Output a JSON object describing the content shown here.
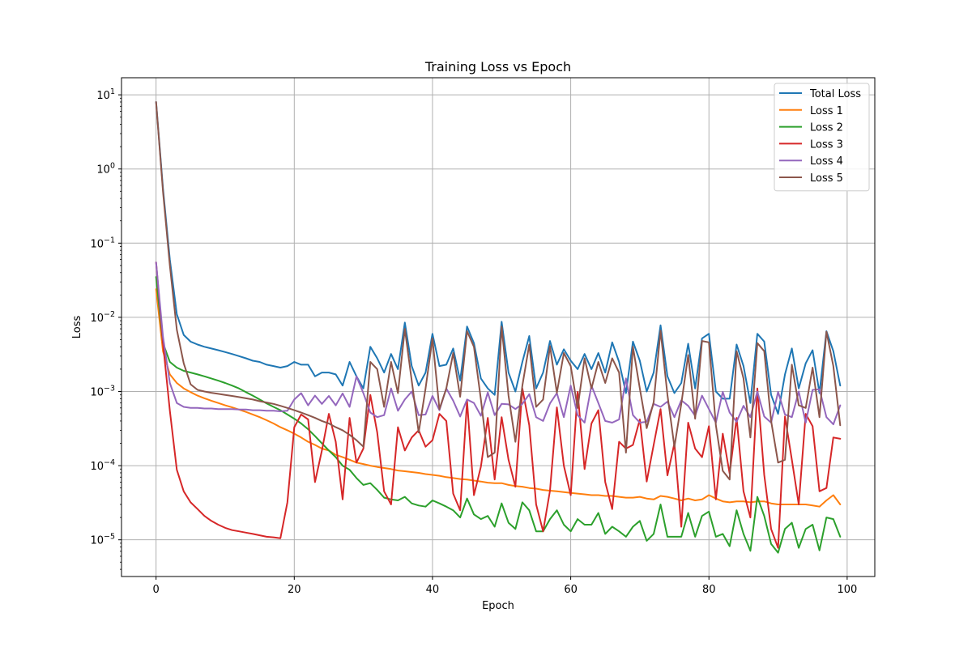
{
  "chart_data": {
    "type": "line",
    "title": "Training Loss vs Epoch",
    "xlabel": "Epoch",
    "ylabel": "Loss",
    "xlim": [
      -5,
      104
    ],
    "ylim": [
      3.2e-06,
      17
    ],
    "yscale": "log",
    "grid": true,
    "legend_position": "top-right",
    "x_ticks": [
      0,
      20,
      40,
      60,
      80,
      100
    ],
    "x_tick_labels": [
      "0",
      "20",
      "40",
      "60",
      "80",
      "100"
    ],
    "y_ticks": [
      1e-05,
      0.0001,
      0.001,
      0.01,
      0.1,
      1,
      10
    ],
    "y_tick_labels": [
      {
        "base": "10",
        "exp": "−5"
      },
      {
        "base": "10",
        "exp": "−4"
      },
      {
        "base": "10",
        "exp": "−3"
      },
      {
        "base": "10",
        "exp": "−2"
      },
      {
        "base": "10",
        "exp": "−1"
      },
      {
        "base": "10",
        "exp": "0"
      },
      {
        "base": "10",
        "exp": "1"
      }
    ],
    "series": [
      {
        "name": "Total Loss",
        "color": "#1f77b4",
        "values": [
          8.0,
          0.55,
          0.06,
          0.011,
          0.0058,
          0.0047,
          0.0043,
          0.004,
          0.0038,
          0.0036,
          0.0034,
          0.0032,
          0.003,
          0.0028,
          0.0026,
          0.0025,
          0.0023,
          0.0022,
          0.0021,
          0.0022,
          0.0025,
          0.0023,
          0.0023,
          0.0016,
          0.0018,
          0.0018,
          0.0017,
          0.0012,
          0.0025,
          0.0016,
          0.0011,
          0.004,
          0.0028,
          0.0018,
          0.0032,
          0.002,
          0.0085,
          0.0022,
          0.0012,
          0.0018,
          0.006,
          0.0022,
          0.0023,
          0.0038,
          0.0014,
          0.0075,
          0.0045,
          0.0015,
          0.0011,
          0.0009,
          0.0087,
          0.0018,
          0.001,
          0.0025,
          0.0056,
          0.0011,
          0.0018,
          0.0048,
          0.0023,
          0.0037,
          0.0026,
          0.002,
          0.0032,
          0.002,
          0.0033,
          0.0018,
          0.0046,
          0.0025,
          0.00095,
          0.0047,
          0.0026,
          0.001,
          0.0018,
          0.0078,
          0.0016,
          0.00095,
          0.0013,
          0.0044,
          0.0011,
          0.0052,
          0.006,
          0.001,
          0.0008,
          0.0008,
          0.0043,
          0.0022,
          0.0007,
          0.006,
          0.0047,
          0.0009,
          0.0005,
          0.0017,
          0.0038,
          0.0011,
          0.0024,
          0.0036,
          0.00095,
          0.0065,
          0.0035,
          0.0012
        ]
      },
      {
        "name": "Loss 1",
        "color": "#ff7f0e",
        "values": [
          0.024,
          0.0035,
          0.0017,
          0.0013,
          0.0011,
          0.00098,
          0.00088,
          0.00081,
          0.00075,
          0.0007,
          0.00065,
          0.00061,
          0.00057,
          0.00053,
          0.00049,
          0.00045,
          0.00041,
          0.00037,
          0.00033,
          0.0003,
          0.00027,
          0.00024,
          0.00021,
          0.00019,
          0.00017,
          0.00016,
          0.00014,
          0.00013,
          0.00012,
          0.00011,
          0.000105,
          0.0001,
          9.6e-05,
          9.3e-05,
          9e-05,
          8.6e-05,
          8.4e-05,
          8.2e-05,
          8e-05,
          7.7e-05,
          7.5e-05,
          7.3e-05,
          7e-05,
          6.8e-05,
          6.6e-05,
          6.5e-05,
          6.3e-05,
          6.1e-05,
          5.9e-05,
          5.8e-05,
          5.8e-05,
          5.5e-05,
          5.3e-05,
          5.2e-05,
          5e-05,
          4.9e-05,
          4.7e-05,
          4.6e-05,
          4.5e-05,
          4.4e-05,
          4.3e-05,
          4.2e-05,
          4.1e-05,
          4e-05,
          4e-05,
          3.9e-05,
          3.9e-05,
          3.8e-05,
          3.7e-05,
          3.7e-05,
          3.8e-05,
          3.6e-05,
          3.5e-05,
          3.9e-05,
          3.8e-05,
          3.6e-05,
          3.4e-05,
          3.6e-05,
          3.4e-05,
          3.5e-05,
          4e-05,
          3.6e-05,
          3.3e-05,
          3.2e-05,
          3.3e-05,
          3.3e-05,
          3.2e-05,
          3.3e-05,
          3.3e-05,
          3.1e-05,
          3e-05,
          3e-05,
          3e-05,
          3e-05,
          3e-05,
          2.9e-05,
          2.8e-05,
          3.4e-05,
          4e-05,
          3e-05
        ]
      },
      {
        "name": "Loss 2",
        "color": "#2ca02c",
        "values": [
          0.035,
          0.0045,
          0.0025,
          0.0021,
          0.0019,
          0.0018,
          0.0017,
          0.0016,
          0.0015,
          0.0014,
          0.0013,
          0.0012,
          0.0011,
          0.00098,
          0.00088,
          0.00078,
          0.00069,
          0.00062,
          0.00056,
          0.00049,
          0.00043,
          0.00037,
          0.00031,
          0.00025,
          0.0002,
          0.00016,
          0.00013,
          0.0001,
          8.8e-05,
          6.8e-05,
          5.5e-05,
          5.8e-05,
          4.7e-05,
          3.7e-05,
          3.5e-05,
          3.4e-05,
          3.8e-05,
          3.1e-05,
          2.9e-05,
          2.8e-05,
          3.4e-05,
          3.1e-05,
          2.8e-05,
          2.5e-05,
          2e-05,
          3.6e-05,
          2.2e-05,
          1.9e-05,
          2.1e-05,
          1.5e-05,
          3.1e-05,
          1.7e-05,
          1.4e-05,
          3.2e-05,
          2.5e-05,
          1.3e-05,
          1.3e-05,
          1.9e-05,
          2.5e-05,
          1.6e-05,
          1.3e-05,
          1.9e-05,
          1.6e-05,
          1.6e-05,
          2.3e-05,
          1.2e-05,
          1.5e-05,
          1.3e-05,
          1.1e-05,
          1.5e-05,
          1.8e-05,
          9.7e-06,
          1.2e-05,
          3e-05,
          1.1e-05,
          1.1e-05,
          1.1e-05,
          2.3e-05,
          1.1e-05,
          2.1e-05,
          2.4e-05,
          1.1e-05,
          1.2e-05,
          8.2e-06,
          2.5e-05,
          1.2e-05,
          7.1e-06,
          3.8e-05,
          2.1e-05,
          8.8e-06,
          6.7e-06,
          1.4e-05,
          1.7e-05,
          7.8e-06,
          1.4e-05,
          1.6e-05,
          7.2e-06,
          2e-05,
          1.9e-05,
          1.1e-05
        ]
      },
      {
        "name": "Loss 3",
        "color": "#d62728",
        "values": [
          0.055,
          0.0045,
          0.00055,
          8.8e-05,
          4.5e-05,
          3.2e-05,
          2.6e-05,
          2.1e-05,
          1.8e-05,
          1.6e-05,
          1.45e-05,
          1.35e-05,
          1.3e-05,
          1.25e-05,
          1.2e-05,
          1.15e-05,
          1.1e-05,
          1.08e-05,
          1.05e-05,
          3.2e-05,
          0.00033,
          0.00049,
          0.00042,
          6e-05,
          0.00016,
          0.0005,
          0.00021,
          3.5e-05,
          0.00044,
          0.00011,
          0.00017,
          0.0009,
          0.00028,
          4.5e-05,
          3e-05,
          0.00033,
          0.00016,
          0.00024,
          0.0003,
          0.00018,
          0.00022,
          0.0005,
          0.0004,
          4.2e-05,
          2.5e-05,
          0.00075,
          4e-05,
          9.7e-05,
          0.00044,
          6.5e-05,
          0.00045,
          0.00012,
          5.2e-05,
          0.0011,
          0.00035,
          3e-05,
          1.3e-05,
          4.6e-05,
          0.00061,
          0.0001,
          4e-05,
          0.00099,
          9e-05,
          0.00037,
          0.00056,
          6e-05,
          2.6e-05,
          0.00021,
          0.00017,
          0.00019,
          0.00042,
          6.1e-05,
          0.00019,
          0.00058,
          7.4e-05,
          0.0002,
          1.5e-05,
          0.00038,
          0.00017,
          0.00013,
          0.00034,
          3.5e-05,
          0.00027,
          7.8e-05,
          0.00044,
          4.5e-05,
          2e-05,
          0.0011,
          7.5e-05,
          1.4e-05,
          7.8e-06,
          0.00046,
          0.00012,
          3e-05,
          0.0005,
          0.00034,
          4.5e-05,
          5e-05,
          0.00024,
          0.00023
        ]
      },
      {
        "name": "Loss 4",
        "color": "#9467bd",
        "values": [
          0.055,
          0.0055,
          0.0013,
          0.0007,
          0.00062,
          0.0006,
          0.0006,
          0.00059,
          0.00059,
          0.00058,
          0.00058,
          0.00058,
          0.00057,
          0.00057,
          0.00056,
          0.00056,
          0.00055,
          0.00055,
          0.00054,
          0.00055,
          0.00078,
          0.00095,
          0.00065,
          0.00088,
          0.00068,
          0.00087,
          0.00065,
          0.00094,
          0.00062,
          0.0016,
          0.00095,
          0.00052,
          0.00045,
          0.00048,
          0.0011,
          0.00055,
          0.00078,
          0.001,
          0.00048,
          0.00049,
          0.00087,
          0.00056,
          0.0011,
          0.00075,
          0.00046,
          0.00078,
          0.0007,
          0.00047,
          0.00097,
          0.00048,
          0.00068,
          0.00067,
          0.00058,
          0.00068,
          0.00092,
          0.00045,
          0.0004,
          0.00069,
          0.00095,
          0.00045,
          0.0012,
          0.00048,
          0.00038,
          0.0012,
          0.0007,
          0.0004,
          0.00038,
          0.00042,
          0.0015,
          0.00048,
          0.00038,
          0.00039,
          0.00068,
          0.00062,
          0.00073,
          0.00045,
          0.00076,
          0.00064,
          0.00047,
          0.00088,
          0.00058,
          0.00038,
          0.00099,
          0.00052,
          0.00039,
          0.00064,
          0.00045,
          0.001,
          0.00046,
          0.00038,
          0.00099,
          0.00049,
          0.00045,
          0.001,
          0.00038,
          0.00105,
          0.00107,
          0.00045,
          0.00036,
          0.00065
        ]
      },
      {
        "name": "Loss 5",
        "color": "#8c564b",
        "values": [
          8.0,
          0.5,
          0.05,
          0.0068,
          0.0024,
          0.00125,
          0.00105,
          0.001,
          0.00096,
          0.00093,
          0.0009,
          0.00087,
          0.00084,
          0.00081,
          0.00078,
          0.00074,
          0.00071,
          0.00068,
          0.00064,
          0.0006,
          0.00056,
          0.00052,
          0.00048,
          0.00044,
          0.0004,
          0.00037,
          0.00033,
          0.0003,
          0.00026,
          0.00022,
          0.00018,
          0.0025,
          0.002,
          0.00062,
          0.0025,
          0.00095,
          0.007,
          0.0014,
          0.00028,
          0.0011,
          0.0052,
          0.00058,
          0.0011,
          0.0033,
          0.00085,
          0.0065,
          0.004,
          0.00078,
          0.00013,
          0.00015,
          0.0075,
          0.00088,
          0.00021,
          0.0012,
          0.0043,
          0.00062,
          0.00078,
          0.0041,
          0.00096,
          0.0033,
          0.0022,
          0.0006,
          0.0028,
          0.0011,
          0.0025,
          0.0013,
          0.0028,
          0.0018,
          0.00015,
          0.004,
          0.0011,
          0.00032,
          0.00072,
          0.0066,
          0.0009,
          0.00018,
          0.00068,
          0.0031,
          0.00043,
          0.0048,
          0.0046,
          0.00035,
          8.5e-05,
          6.5e-05,
          0.0035,
          0.0015,
          0.00024,
          0.0045,
          0.0035,
          0.0004,
          0.00011,
          0.00012,
          0.0023,
          0.00065,
          0.0006,
          0.0021,
          0.00045,
          0.0064,
          0.0022,
          0.00035
        ]
      }
    ]
  }
}
